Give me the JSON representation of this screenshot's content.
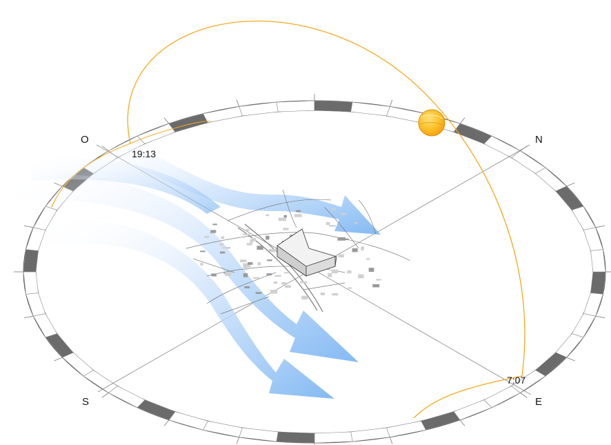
{
  "compass": {
    "north": "N",
    "east": "E",
    "south": "S",
    "west": "O"
  },
  "times": {
    "sunset": "19:13",
    "sunrise": "7:07"
  },
  "colors": {
    "sun_path": "#f4a91c",
    "sun": "#fbbf24",
    "wind": "#7db6f2",
    "ring_dark": "#6b6b6b",
    "map_lines": "#7a7a7a"
  },
  "icons": {
    "sun": "sun-icon",
    "wind": "wind-arrow-icon",
    "building": "building-icon"
  }
}
